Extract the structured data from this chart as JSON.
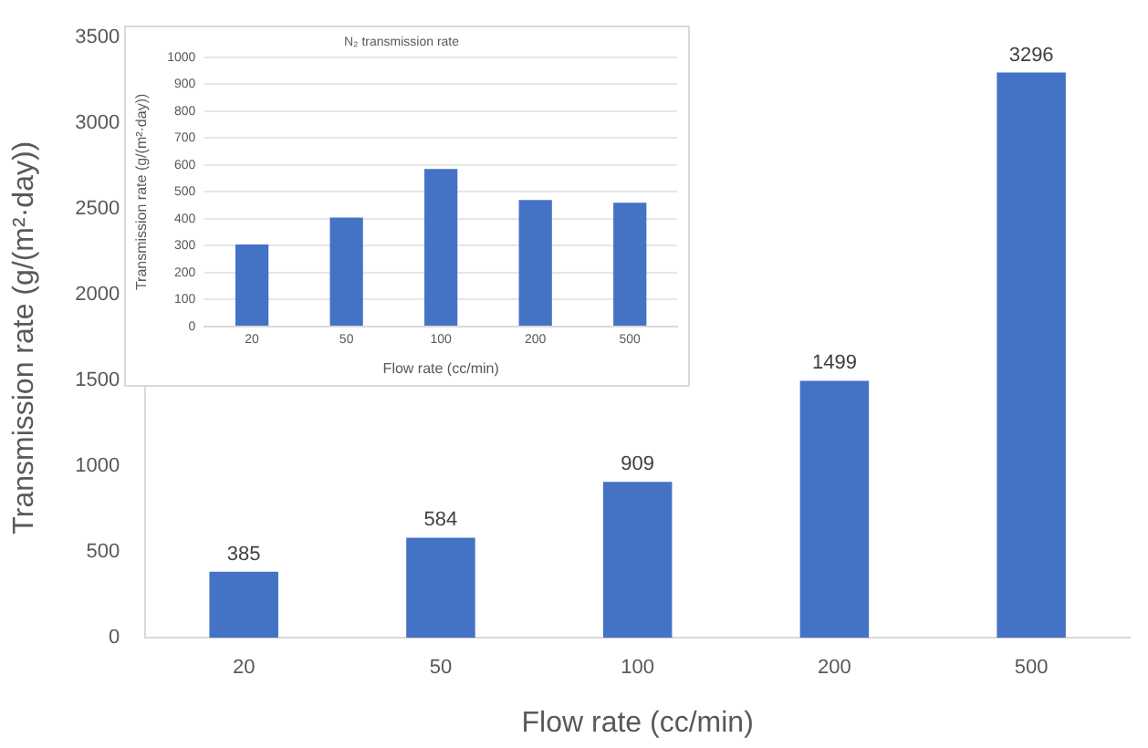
{
  "chart_data": [
    {
      "type": "bar",
      "xlabel": "Flow rate (cc/min)",
      "ylabel": "Transmission rate (g/(m²·day))",
      "categories": [
        "20",
        "50",
        "100",
        "200",
        "500"
      ],
      "values": [
        385,
        584,
        909,
        1499,
        3296
      ],
      "color": "#4472c4",
      "ylim": [
        0,
        3500
      ],
      "yticks": [
        0,
        500,
        1000,
        1500,
        2000,
        2500,
        3000,
        3500
      ],
      "grid": false,
      "data_labels": true,
      "legend": false
    },
    {
      "type": "bar",
      "title": "N₂ transmission rate",
      "xlabel": "Flow rate (cc/min)",
      "ylabel": "Transmission rate (g/(m²·day))",
      "categories": [
        "20",
        "50",
        "100",
        "200",
        "500"
      ],
      "values": [
        305,
        405,
        585,
        470,
        460
      ],
      "color": "#4472c4",
      "ylim": [
        0,
        1000
      ],
      "yticks": [
        0,
        100,
        200,
        300,
        400,
        500,
        600,
        700,
        800,
        900,
        1000
      ],
      "grid": "y",
      "legend": false
    }
  ]
}
